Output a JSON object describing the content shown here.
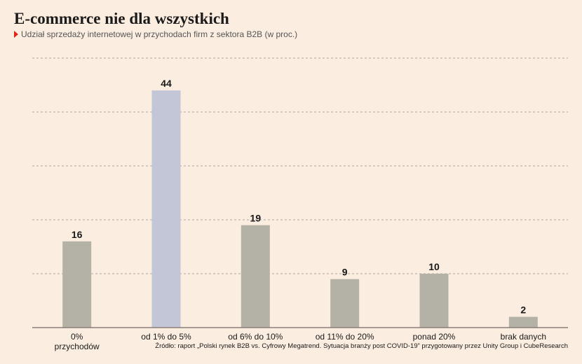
{
  "header": {
    "title": "E-commerce nie dla wszystkich",
    "subtitle": "Udział sprzedaży internetowej w przychodach firm z sektora B2B (w proc.)"
  },
  "source": "Źródło: raport „Polski rynek B2B vs. Cyfrowy Megatrend. Sytuacja branży post COVID-19” przygotowany przez Unity Group i CubeResearch",
  "colors": {
    "bar": "#b4b2a6",
    "highlight": "#c2c6d6",
    "grid": "#b0a8a0",
    "axis": "#8a7f78",
    "background": "#fbede0",
    "marker": "#e2231a"
  },
  "chart_data": {
    "type": "bar",
    "title": "E-commerce nie dla wszystkich",
    "subtitle": "Udział sprzedaży internetowej w przychodach firm z sektora B2B (w proc.)",
    "categories": [
      [
        "0%",
        "przychodów"
      ],
      [
        "od 1% do 5%"
      ],
      [
        "od 6% do 10%"
      ],
      [
        "od 11% do 20%"
      ],
      [
        "ponad 20%"
      ],
      [
        "brak danych"
      ]
    ],
    "values": [
      16,
      44,
      19,
      9,
      10,
      2
    ],
    "highlight_index": 1,
    "ylim": [
      0,
      50
    ],
    "y_grid_step": 10,
    "grid": true,
    "y_tick_labels": false,
    "data_labels": true
  }
}
